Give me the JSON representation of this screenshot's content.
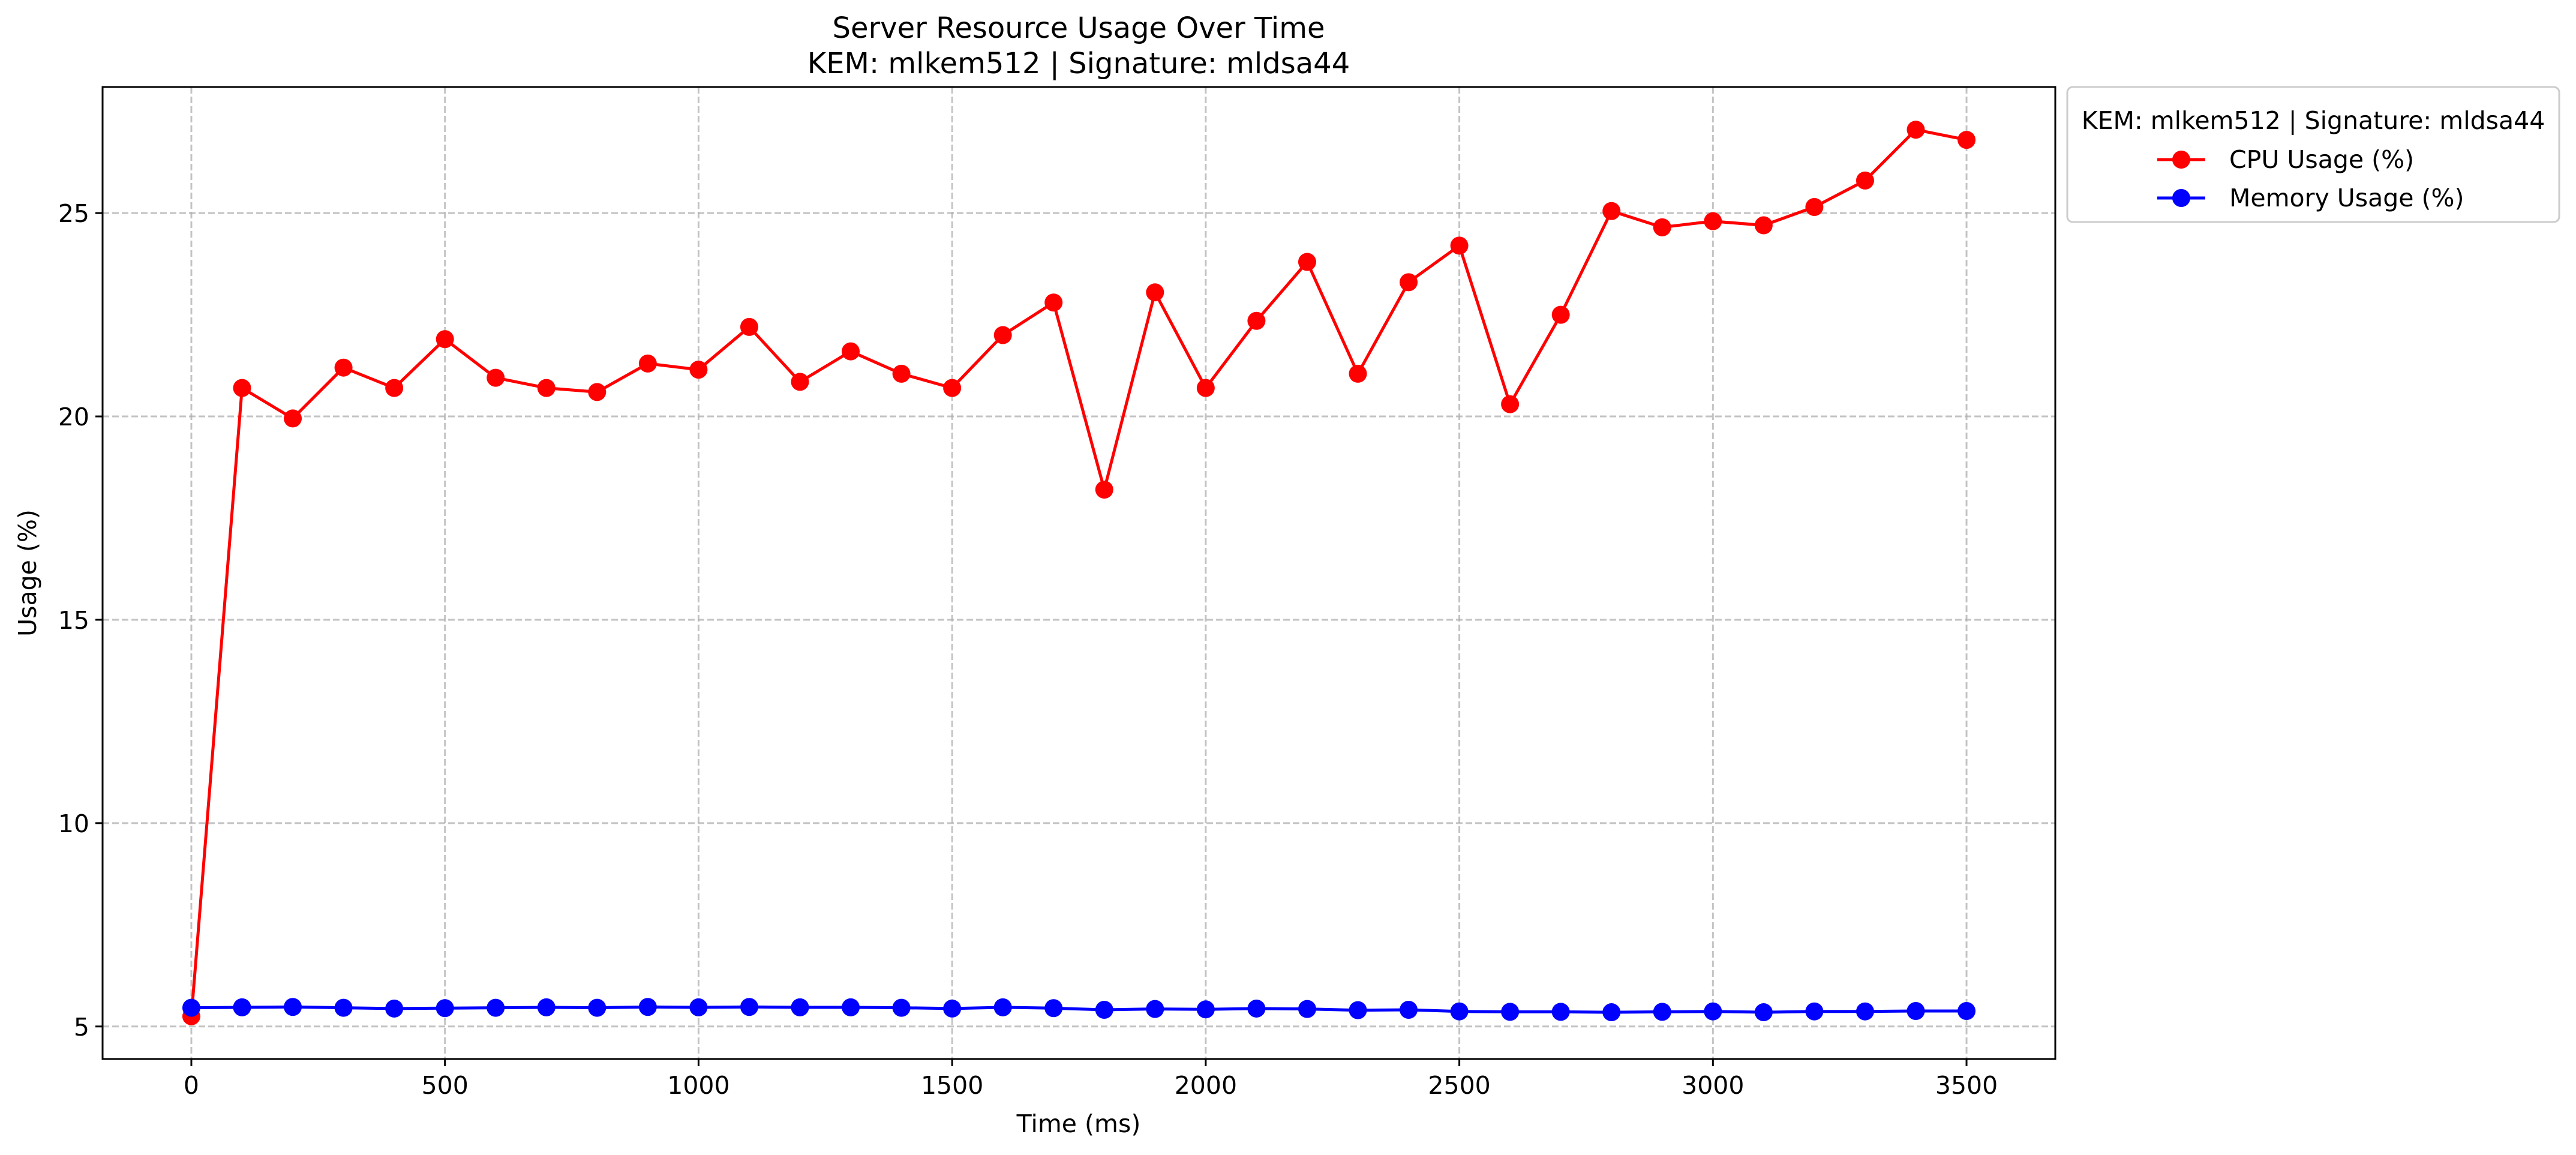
{
  "chart_data": {
    "type": "line",
    "title": "Server Resource Usage Over Time",
    "subtitle": "KEM: mlkem512 | Signature: mldsa44",
    "xlabel": "Time (ms)",
    "ylabel": "Usage (%)",
    "xlim": [
      -175,
      3675
    ],
    "ylim": [
      4.2,
      28.1
    ],
    "xticks": [
      0,
      500,
      1000,
      1500,
      2000,
      2500,
      3000,
      3500
    ],
    "yticks": [
      5,
      10,
      15,
      20,
      25
    ],
    "grid": true,
    "legend": {
      "title": "KEM: mlkem512 | Signature: mldsa44",
      "placement": "outside upper-right"
    },
    "x": [
      0,
      100,
      200,
      300,
      400,
      500,
      600,
      700,
      800,
      900,
      1000,
      1100,
      1200,
      1300,
      1400,
      1500,
      1600,
      1700,
      1800,
      1900,
      2000,
      2100,
      2200,
      2300,
      2400,
      2500,
      2600,
      2700,
      2800,
      2900,
      3000,
      3100,
      3200,
      3300,
      3400,
      3500
    ],
    "series": [
      {
        "name": "CPU Usage (%)",
        "color": "#ff0000",
        "values": [
          5.25,
          20.7,
          19.95,
          21.2,
          20.7,
          21.9,
          20.95,
          20.7,
          20.6,
          21.3,
          21.15,
          22.2,
          20.85,
          21.6,
          21.05,
          20.7,
          22.0,
          22.8,
          18.2,
          23.05,
          20.7,
          22.35,
          23.8,
          21.05,
          23.3,
          24.2,
          20.3,
          22.5,
          25.05,
          24.65,
          24.8,
          24.7,
          25.15,
          25.8,
          27.05,
          26.8
        ]
      },
      {
        "name": "Memory Usage (%)",
        "color": "#0000ff",
        "values": [
          5.46,
          5.47,
          5.48,
          5.46,
          5.44,
          5.45,
          5.46,
          5.47,
          5.46,
          5.48,
          5.47,
          5.48,
          5.47,
          5.47,
          5.46,
          5.44,
          5.47,
          5.45,
          5.41,
          5.43,
          5.42,
          5.44,
          5.43,
          5.4,
          5.41,
          5.37,
          5.36,
          5.36,
          5.35,
          5.36,
          5.37,
          5.35,
          5.37,
          5.37,
          5.38,
          5.38
        ]
      }
    ]
  }
}
